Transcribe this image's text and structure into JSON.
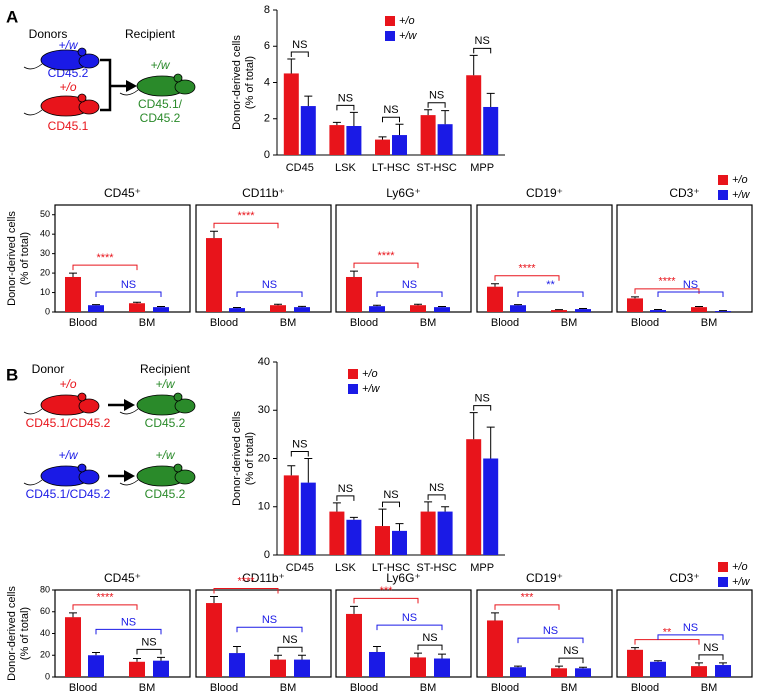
{
  "panel_labels": [
    "A",
    "B"
  ],
  "diagram_a": {
    "donors": "Donors",
    "recipient": "Recipient",
    "donor_1_genotype": "+/w",
    "donor_1_marker": "CD45.2",
    "donor_2_genotype": "+/o",
    "donor_2_marker": "CD45.1",
    "recipient_genotype": "+/w",
    "recipient_marker": [
      "CD45.1/",
      "CD45.2"
    ]
  },
  "diagram_b": {
    "donor": "Donor",
    "recipient": "Recipient",
    "rows": [
      {
        "donor_genotype": "+/o",
        "donor_marker": "CD45.1/CD45.2",
        "recipient_genotype": "+/w",
        "recipient_marker": "CD45.2"
      },
      {
        "donor_genotype": "+/w",
        "donor_marker": "CD45.1/CD45.2",
        "recipient_genotype": "+/w",
        "recipient_marker": "CD45.2"
      }
    ]
  },
  "chart_data": [
    {
      "type": "bar",
      "ylabel": [
        "Donor-derived cells",
        "(% of total)"
      ],
      "categories": [
        "CD45",
        "LSK",
        "LT-HSC",
        "ST-HSC",
        "MPP"
      ],
      "series": [
        {
          "name": "+/o",
          "color": "#e8141b",
          "values": [
            4.5,
            1.65,
            0.85,
            2.2,
            4.4
          ],
          "errors": [
            0.8,
            0.15,
            0.15,
            0.3,
            1.1
          ]
        },
        {
          "name": "+/w",
          "color": "#1a1ae6",
          "values": [
            2.7,
            1.6,
            1.1,
            1.7,
            2.65
          ],
          "errors": [
            0.55,
            0.75,
            0.6,
            0.75,
            0.75
          ]
        }
      ],
      "annotations": [
        "NS",
        "NS",
        "NS",
        "NS",
        "NS"
      ],
      "ylim": [
        0,
        8
      ],
      "yticks": [
        0,
        2,
        4,
        6,
        8
      ],
      "legend": "upper right"
    },
    {
      "type": "bar-panels",
      "ylabel": [
        "Donor-derived cells",
        "(% of total)"
      ],
      "categories": [
        "Blood",
        "BM"
      ],
      "series": [
        {
          "name": "+/o",
          "color": "#e8141b"
        },
        {
          "name": "+/w",
          "color": "#1a1ae6"
        }
      ],
      "ylim": [
        0,
        55
      ],
      "yticks": [
        0,
        10,
        20,
        30,
        40,
        50
      ],
      "legend": "upper right",
      "panels": [
        {
          "title": "CD45⁺",
          "series": [
            {
              "values": [
                18,
                4.5
              ],
              "errors": [
                2,
                0.5
              ]
            },
            {
              "values": [
                3.5,
                2.5
              ],
              "errors": [
                0.3,
                0.3
              ]
            }
          ],
          "annotations": [
            "****",
            "NS"
          ]
        },
        {
          "title": "CD11b⁺",
          "series": [
            {
              "values": [
                38,
                3.5
              ],
              "errors": [
                3.5,
                0.5
              ]
            },
            {
              "values": [
                2,
                2.5
              ],
              "errors": [
                0.3,
                0.4
              ]
            }
          ],
          "annotations": [
            "****",
            "NS"
          ]
        },
        {
          "title": "Ly6G⁺",
          "series": [
            {
              "values": [
                18,
                3.5
              ],
              "errors": [
                3,
                0.5
              ]
            },
            {
              "values": [
                3,
                2.5
              ],
              "errors": [
                0.5,
                0.3
              ]
            }
          ],
          "annotations": [
            "****",
            "NS"
          ]
        },
        {
          "title": "CD19⁺",
          "series": [
            {
              "values": [
                13,
                1
              ],
              "errors": [
                1.5,
                0.2
              ]
            },
            {
              "values": [
                3.5,
                1.5
              ],
              "errors": [
                0.3,
                0.3
              ]
            }
          ],
          "annotations": [
            "****",
            "**"
          ]
        },
        {
          "title": "CD3⁺",
          "series": [
            {
              "values": [
                7,
                2.5
              ],
              "errors": [
                0.8,
                0.3
              ]
            },
            {
              "values": [
                1,
                0.5
              ],
              "errors": [
                0.3,
                0.2
              ]
            }
          ],
          "annotations": [
            "****",
            "NS"
          ]
        }
      ]
    },
    {
      "type": "bar",
      "ylabel": [
        "Donor-derived cells",
        "(% of total)"
      ],
      "categories": [
        "CD45",
        "LSK",
        "LT-HSC",
        "ST-HSC",
        "MPP"
      ],
      "series": [
        {
          "name": "+/o",
          "color": "#e8141b",
          "values": [
            16.5,
            9,
            6,
            9,
            24
          ],
          "errors": [
            2,
            1.8,
            3.5,
            2,
            5.5
          ]
        },
        {
          "name": "+/w",
          "color": "#1a1ae6",
          "values": [
            15,
            7.3,
            5,
            9,
            20
          ],
          "errors": [
            5,
            0.5,
            1.5,
            1,
            6.5
          ]
        }
      ],
      "annotations": [
        "NS",
        "NS",
        "NS",
        "NS",
        "NS"
      ],
      "ylim": [
        0,
        40
      ],
      "yticks": [
        0,
        10,
        20,
        30,
        40
      ],
      "legend": "upper left"
    },
    {
      "type": "bar-panels",
      "ylabel": [
        "Donor-derived cells",
        "(% of total)"
      ],
      "categories": [
        "Blood",
        "BM"
      ],
      "series": [
        {
          "name": "+/o",
          "color": "#e8141b"
        },
        {
          "name": "+/w",
          "color": "#1a1ae6"
        }
      ],
      "ylim": [
        0,
        80
      ],
      "yticks": [
        0,
        20,
        40,
        60,
        80
      ],
      "legend": "upper right",
      "panels": [
        {
          "title": "CD45⁺",
          "series": [
            {
              "values": [
                55,
                14
              ],
              "errors": [
                4,
                3
              ]
            },
            {
              "values": [
                20,
                15
              ],
              "errors": [
                2.5,
                3
              ]
            }
          ],
          "annotations": [
            "****",
            "NS",
            "NS"
          ]
        },
        {
          "title": "CD11b⁺",
          "series": [
            {
              "values": [
                68,
                16
              ],
              "errors": [
                6,
                4
              ]
            },
            {
              "values": [
                22,
                16
              ],
              "errors": [
                6,
                4
              ]
            }
          ],
          "annotations": [
            "****",
            "NS",
            "NS"
          ]
        },
        {
          "title": "Ly6G⁺",
          "series": [
            {
              "values": [
                58,
                18
              ],
              "errors": [
                7,
                4
              ]
            },
            {
              "values": [
                23,
                17
              ],
              "errors": [
                5,
                4
              ]
            }
          ],
          "annotations": [
            "***",
            "NS",
            "NS"
          ]
        },
        {
          "title": "CD19⁺",
          "series": [
            {
              "values": [
                52,
                8
              ],
              "errors": [
                7,
                2
              ]
            },
            {
              "values": [
                9,
                8
              ],
              "errors": [
                1,
                1
              ]
            }
          ],
          "annotations": [
            "***",
            "NS",
            "NS"
          ]
        },
        {
          "title": "CD3⁺",
          "series": [
            {
              "values": [
                25,
                10
              ],
              "errors": [
                2,
                3
              ]
            },
            {
              "values": [
                14,
                11
              ],
              "errors": [
                1,
                2
              ]
            }
          ],
          "annotations": [
            "**",
            "NS",
            "NS"
          ]
        }
      ]
    }
  ]
}
